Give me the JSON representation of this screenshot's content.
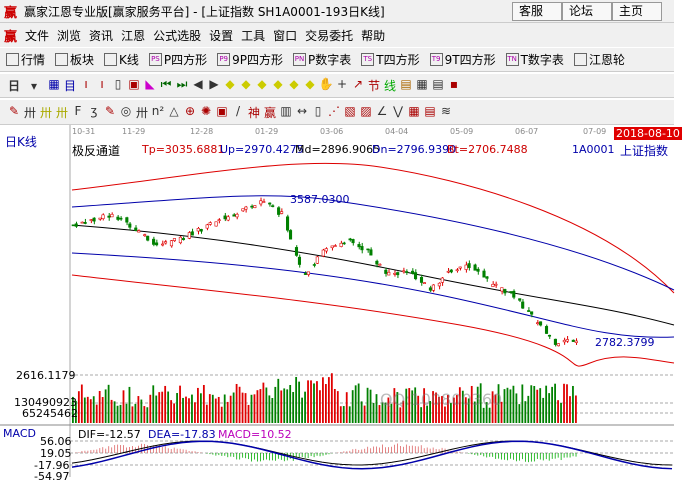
{
  "window": {
    "title": "赢家江恩专业版[赢家服务平台] - [上证指数  SH1A0001-193日K线]",
    "logo": "赢",
    "buttons": [
      "客服",
      "论坛",
      "主页"
    ]
  },
  "menu": {
    "items": [
      "文件",
      "浏览",
      "资讯",
      "江恩",
      "公式选股",
      "设置",
      "工具",
      "窗口",
      "交易委托",
      "帮助"
    ]
  },
  "toolbar1": {
    "items": [
      {
        "label": "行情",
        "icon": "grid-icon"
      },
      {
        "label": "板块",
        "icon": "blocks-icon"
      },
      {
        "label": "K线",
        "icon": "candle-icon"
      },
      {
        "label": "P四方形",
        "icon": "PS"
      },
      {
        "label": "9P四方形",
        "icon": "P9"
      },
      {
        "label": "P数字表",
        "icon": "PN"
      },
      {
        "label": "T四方形",
        "icon": "TS"
      },
      {
        "label": "9T四方形",
        "icon": "T9"
      },
      {
        "label": "T数字表",
        "icon": "TN"
      },
      {
        "label": "江恩轮",
        "icon": "wheel-icon"
      }
    ]
  },
  "toolbar2": {
    "period": "日"
  },
  "chart": {
    "period_label": "日K线",
    "dates": [
      "10-31",
      "11-29",
      "12-28",
      "01-29",
      "03-06",
      "04-04",
      "05-09",
      "06-07",
      "07-09"
    ],
    "current_date": "2018-08-10",
    "indicator": "极反通道",
    "tp": "Tp=3035.6881",
    "up": "Up=2970.4275",
    "md": "Md=2896.9065",
    "dn": "Dn=2796.9390",
    "bt": "Bt=2706.7488",
    "code": "1A0001",
    "name": "上证指数",
    "high_label": "3587.0300",
    "low_label": "2782.3799",
    "volume_labels": [
      "2616.1179",
      "130490923",
      "65245462"
    ],
    "watermark": "QQ:100800360",
    "macd": {
      "name": "MACD",
      "dif": "DIF=-12.57",
      "dea": "DEA=-17.83",
      "macd": "MACD=10.52",
      "ticks": [
        "56.06",
        "19.05",
        "-17.96",
        "-54.97"
      ]
    },
    "colors": {
      "up": "#e00000",
      "down": "#008000",
      "date_highlight": "#e00000"
    }
  },
  "chart_data": {
    "type": "candlestick",
    "approx_closes": [
      3445,
      3480,
      3502,
      3420,
      3332,
      3360,
      3417,
      3470,
      3530,
      3587,
      3502,
      3162,
      3300,
      3360,
      3304,
      3162,
      3190,
      3077,
      3190,
      3219,
      3105,
      3049,
      2907,
      2782,
      2800
    ]
  }
}
